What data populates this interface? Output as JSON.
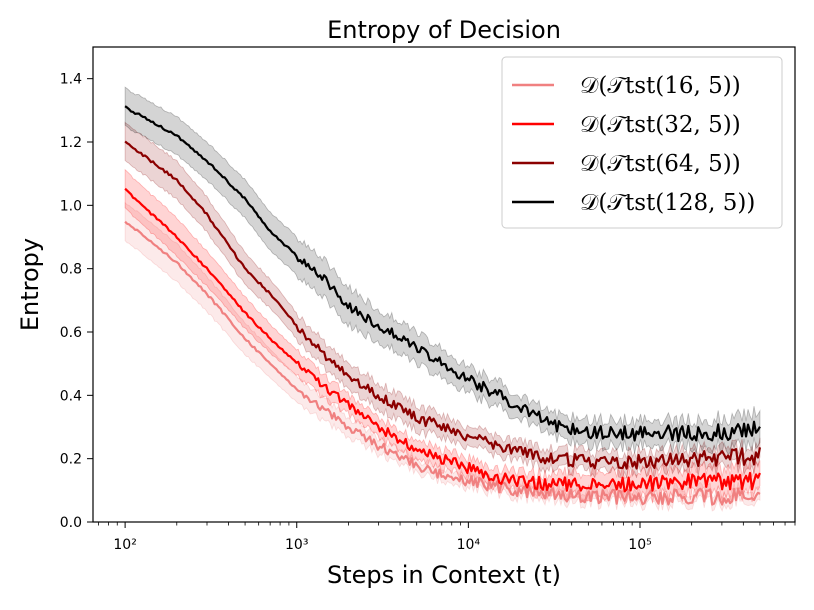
{
  "chart_data": {
    "type": "line",
    "title": "Entropy of Decision",
    "xlabel": "Steps in Context (t)",
    "ylabel": "Entropy",
    "x_scale": "log",
    "xlim": [
      65,
      800000
    ],
    "ylim": [
      0.0,
      1.5
    ],
    "x_ticks": [
      {
        "value": 100,
        "label": "10²"
      },
      {
        "value": 1000,
        "label": "10³"
      },
      {
        "value": 10000,
        "label": "10⁴"
      },
      {
        "value": 100000,
        "label": "10⁵"
      }
    ],
    "y_ticks": [
      0.0,
      0.2,
      0.4,
      0.6,
      0.8,
      1.0,
      1.2,
      1.4
    ],
    "grid": false,
    "legend_position": "top-right",
    "x": [
      100,
      200,
      300,
      500,
      700,
      1000,
      1500,
      2000,
      3000,
      5000,
      7000,
      10000,
      15000,
      20000,
      30000,
      50000,
      100000,
      200000,
      500000
    ],
    "series": [
      {
        "name": "𝒟(𝒯tst(16, 5))",
        "color": "#f08080",
        "values": [
          0.95,
          0.82,
          0.72,
          0.58,
          0.5,
          0.42,
          0.35,
          0.3,
          0.24,
          0.18,
          0.15,
          0.13,
          0.11,
          0.1,
          0.09,
          0.08,
          0.08,
          0.08,
          0.08
        ],
        "band": [
          0.06,
          0.06,
          0.055,
          0.05,
          0.045,
          0.04,
          0.035,
          0.03,
          0.025,
          0.02,
          0.02,
          0.02,
          0.02,
          0.02,
          0.02,
          0.02,
          0.02,
          0.02,
          0.02
        ]
      },
      {
        "name": "𝒟(𝒯tst(32, 5))",
        "color": "#ff0000",
        "values": [
          1.05,
          0.9,
          0.8,
          0.66,
          0.58,
          0.5,
          0.42,
          0.37,
          0.3,
          0.23,
          0.2,
          0.17,
          0.14,
          0.13,
          0.12,
          0.12,
          0.12,
          0.13,
          0.13
        ],
        "band": [
          0.06,
          0.06,
          0.055,
          0.05,
          0.045,
          0.04,
          0.035,
          0.03,
          0.03,
          0.03,
          0.03,
          0.03,
          0.03,
          0.03,
          0.03,
          0.04,
          0.04,
          0.04,
          0.04
        ]
      },
      {
        "name": "𝒟(𝒯tst(64, 5))",
        "color": "#8b0000",
        "values": [
          1.2,
          1.08,
          0.97,
          0.8,
          0.72,
          0.62,
          0.52,
          0.46,
          0.4,
          0.33,
          0.3,
          0.27,
          0.24,
          0.22,
          0.2,
          0.19,
          0.19,
          0.2,
          0.21
        ],
        "band": [
          0.06,
          0.06,
          0.055,
          0.05,
          0.045,
          0.04,
          0.04,
          0.04,
          0.04,
          0.04,
          0.035,
          0.03,
          0.03,
          0.03,
          0.03,
          0.03,
          0.03,
          0.03,
          0.03
        ]
      },
      {
        "name": "𝒟(𝒯tst(128, 5))",
        "color": "#000000",
        "values": [
          1.31,
          1.22,
          1.14,
          1.02,
          0.92,
          0.84,
          0.76,
          0.68,
          0.62,
          0.55,
          0.5,
          0.45,
          0.4,
          0.36,
          0.31,
          0.28,
          0.28,
          0.28,
          0.29
        ],
        "band": [
          0.06,
          0.06,
          0.06,
          0.06,
          0.06,
          0.06,
          0.06,
          0.06,
          0.05,
          0.05,
          0.045,
          0.04,
          0.04,
          0.035,
          0.035,
          0.04,
          0.04,
          0.04,
          0.05
        ]
      }
    ]
  }
}
